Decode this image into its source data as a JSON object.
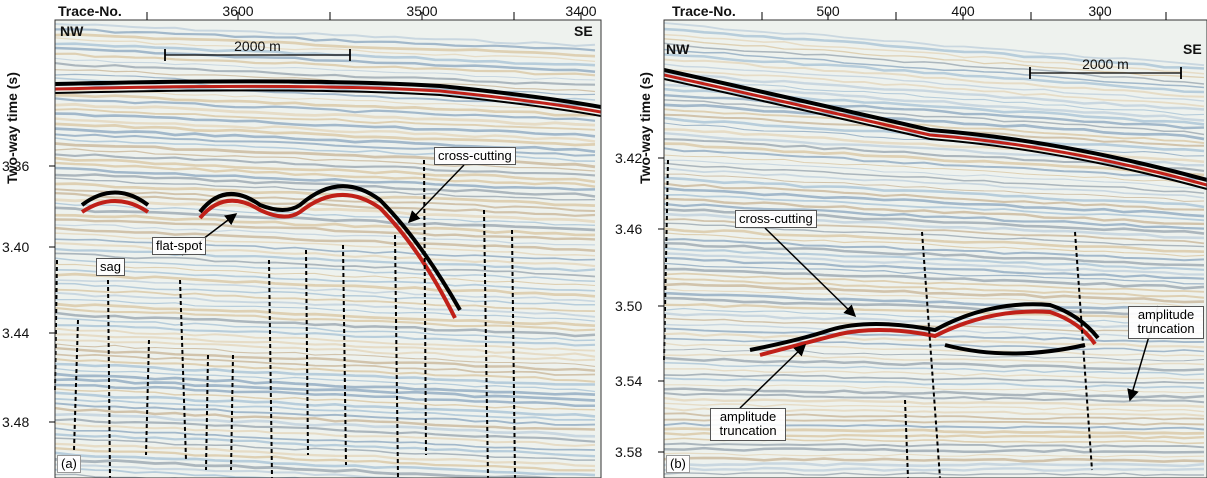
{
  "panels": [
    {
      "label": "(a)",
      "x_title": "Trace-No.",
      "y_title": "Two-way time (s)",
      "x_ticks": [
        "3600",
        "3500",
        "3400"
      ],
      "y_ticks": [
        "3.36",
        "3.40",
        "3.44",
        "3.48"
      ],
      "left": "NW",
      "right": "SE",
      "scale": "2000 m",
      "annotations": [
        "cross-cutting",
        "flat-spot",
        "sag"
      ]
    },
    {
      "label": "(b)",
      "x_title": "Trace-No.",
      "y_title": "Two-way time (s)",
      "x_ticks": [
        "500",
        "400",
        "300"
      ],
      "y_ticks": [
        "3.42",
        "3.46",
        "3.50",
        "3.54",
        "3.58"
      ],
      "left": "NW",
      "right": "SE",
      "scale": "2000 m",
      "annotations": [
        "cross-cutting",
        "amplitude truncation",
        "amplitude truncation"
      ]
    }
  ]
}
